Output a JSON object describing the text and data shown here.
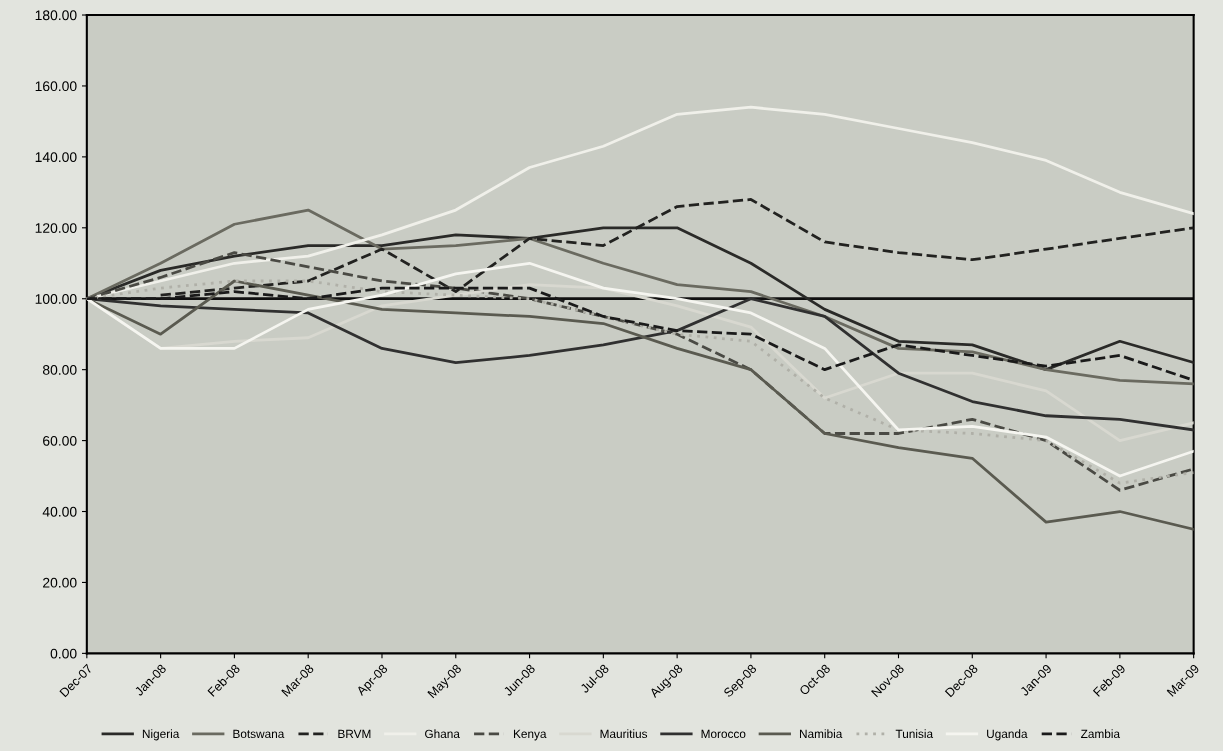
{
  "chart_data": {
    "type": "line",
    "categories": [
      "Dec-07",
      "Jan-08",
      "Feb-08",
      "Mar-08",
      "Apr-08",
      "May-08",
      "Jun-08",
      "Jul-08",
      "Aug-08",
      "Sep-08",
      "Oct-08",
      "Nov-08",
      "Dec-08",
      "Jan-09",
      "Feb-09",
      "Mar-09"
    ],
    "series": [
      {
        "name": "Nigeria",
        "color": "#2a2a28",
        "values": [
          100,
          108,
          112,
          115,
          115,
          118,
          117,
          120,
          120,
          110,
          97,
          88,
          87,
          80,
          88,
          82
        ]
      },
      {
        "name": "Botswana",
        "color": "#6a6a60",
        "values": [
          100,
          110,
          121,
          125,
          114,
          115,
          117,
          110,
          104,
          102,
          95,
          86,
          85,
          80,
          77,
          76
        ]
      },
      {
        "name": "BRVM",
        "color": "#222220",
        "line_style": "dashed",
        "values": [
          null,
          101,
          103,
          105,
          114,
          102,
          117,
          115,
          126,
          128,
          116,
          113,
          111,
          114,
          117,
          120
        ]
      },
      {
        "name": "Ghana",
        "color": "#f0f0ea",
        "values": [
          100,
          105,
          110,
          112,
          118,
          125,
          137,
          143,
          152,
          154,
          152,
          148,
          144,
          139,
          130,
          124
        ]
      },
      {
        "name": "Kenya",
        "color": "#4a4a44",
        "line_style": "dashed",
        "values": [
          100,
          106,
          113,
          109,
          105,
          103,
          100,
          95,
          90,
          80,
          62,
          62,
          66,
          60,
          46,
          52
        ]
      },
      {
        "name": "Mauritius",
        "color": "#d8d8d0",
        "values": [
          100,
          86,
          88,
          89,
          98,
          101,
          104,
          103,
          98,
          92,
          72,
          79,
          79,
          74,
          60,
          65
        ]
      },
      {
        "name": "Morocco",
        "color": "#303030",
        "values": [
          100,
          98,
          97,
          96,
          86,
          82,
          84,
          87,
          91,
          100,
          95,
          79,
          71,
          67,
          66,
          63
        ]
      },
      {
        "name": "Namibia",
        "color": "#5a5a50",
        "values": [
          100,
          90,
          105,
          101,
          97,
          96,
          95,
          93,
          86,
          80,
          62,
          58,
          55,
          37,
          40,
          35
        ]
      },
      {
        "name": "Tunisia",
        "color": "#b0b0a8",
        "line_style": "dotted",
        "values": [
          100,
          103,
          105,
          105,
          102,
          101,
          100,
          95,
          90,
          88,
          72,
          63,
          62,
          60,
          48,
          51
        ]
      },
      {
        "name": "Uganda",
        "color": "#f5f5f0",
        "values": [
          100,
          86,
          86,
          97,
          101,
          107,
          110,
          103,
          100,
          96,
          86,
          63,
          64,
          61,
          50,
          57
        ]
      },
      {
        "name": "Zambia",
        "color": "#1a1a1a",
        "line_style": "dashed",
        "values": [
          100,
          100,
          102,
          100,
          103,
          103,
          103,
          95,
          91,
          90,
          80,
          87,
          84,
          81,
          84,
          77
        ]
      }
    ],
    "ylim": [
      0,
      180
    ],
    "yticks": [
      {
        "value": 0,
        "label": "0.00"
      },
      {
        "value": 20,
        "label": "20.00"
      },
      {
        "value": 40,
        "label": "40.00"
      },
      {
        "value": 60,
        "label": "60.00"
      },
      {
        "value": 80,
        "label": "80.00"
      },
      {
        "value": 100,
        "label": "100.00"
      },
      {
        "value": 120,
        "label": "120.00"
      },
      {
        "value": 140,
        "label": "140.00"
      },
      {
        "value": 160,
        "label": "160.00"
      },
      {
        "value": 180,
        "label": "180.00"
      }
    ],
    "ref_lines": [
      {
        "axis": "y",
        "value": 100,
        "color": "#111111"
      }
    ],
    "legend": "bottom",
    "grid": false,
    "marker": "none"
  }
}
